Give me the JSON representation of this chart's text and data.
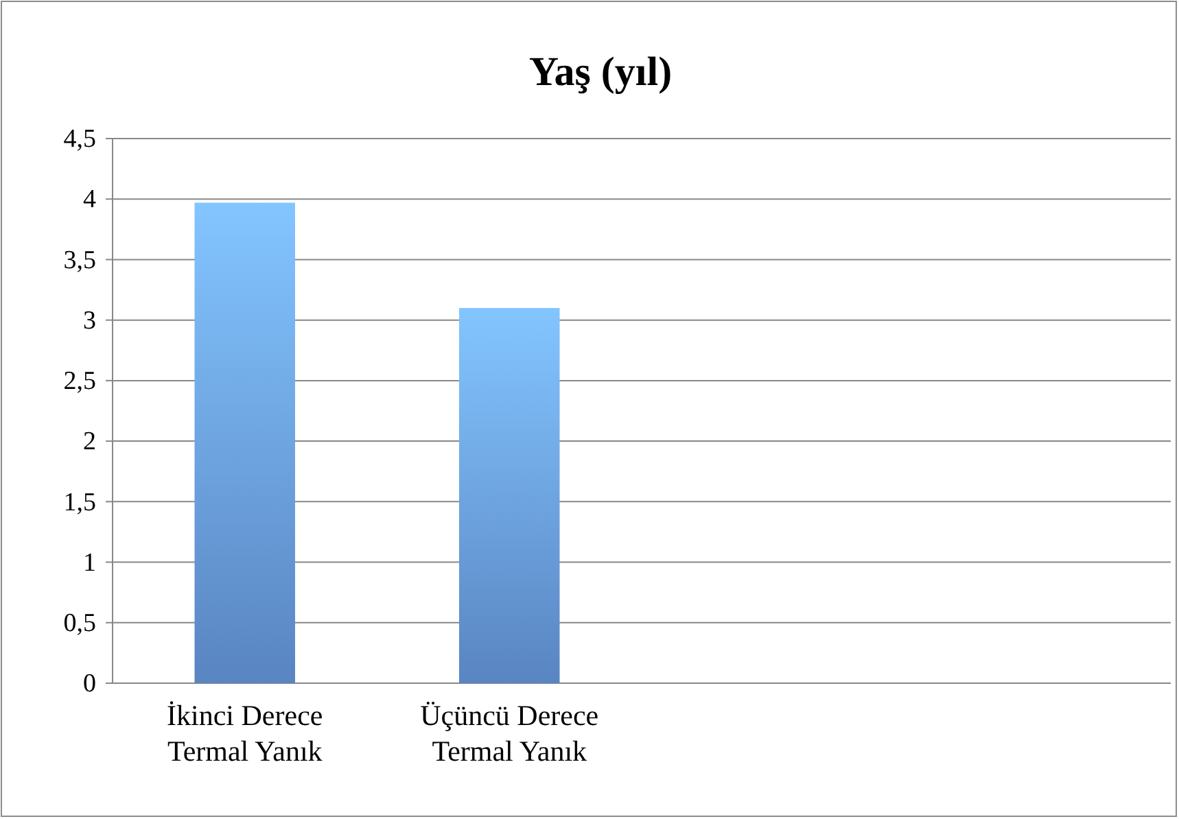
{
  "chart_data": {
    "type": "bar",
    "title": "Yaş (yıl)",
    "categories": [
      "İkinci Derece Termal Yanık",
      "Üçüncü Derece Termal Yanık",
      null,
      null
    ],
    "values": [
      3.97,
      3.1,
      null,
      null
    ],
    "color": "#6a9fe8",
    "ylim": [
      0,
      4.5
    ],
    "yticks": [
      0,
      {
        "value": 0.5,
        "label": "0,5"
      },
      1,
      {
        "value": 1.5,
        "label": "1,5"
      },
      2,
      {
        "value": 2.5,
        "label": "2,5"
      },
      3,
      {
        "value": 3.5,
        "label": "3,5"
      },
      4,
      {
        "value": 4.5,
        "label": "4,5"
      }
    ],
    "grid": "y"
  }
}
